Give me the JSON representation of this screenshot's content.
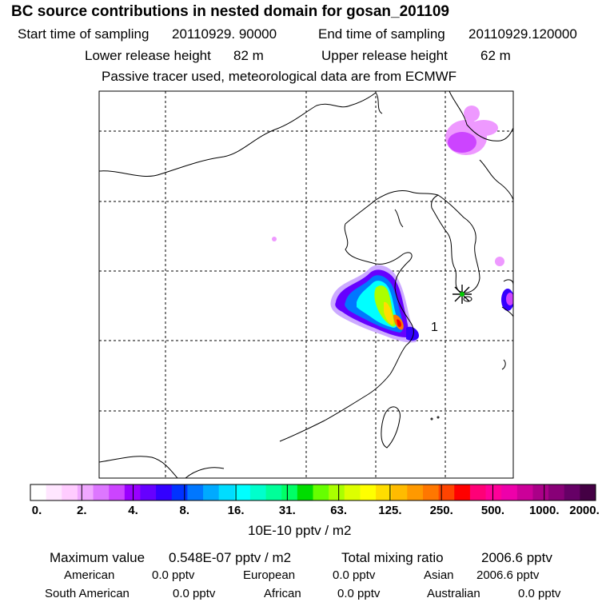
{
  "header": {
    "title": "BC  source contributions in nested domain for gosan_201109",
    "start_label": "Start time of sampling",
    "start_value": "20110929. 90000",
    "end_label": "End time of sampling",
    "end_value": "20110929.120000",
    "lower_label": "Lower release height",
    "lower_value": "82 m",
    "upper_label": "Upper release height",
    "upper_value": "62 m",
    "tracer_note": "Passive tracer used, meteorological data are from ECMWF"
  },
  "map": {
    "station_marker": "asterisk-star-icon",
    "marker_label": "1",
    "plume_colors": [
      "#ff00aa",
      "#ff2020",
      "#ffcc00",
      "#a0ff00",
      "#00ff80",
      "#00ffff",
      "#0090ff",
      "#2020ff",
      "#9000ff",
      "#dd44ff",
      "#ee99ff"
    ]
  },
  "colorbar": {
    "colors": [
      "#ffffff",
      "#ffe6ff",
      "#ffccff",
      "#f0a8ff",
      "#dd77ff",
      "#cc44ff",
      "#9900ff",
      "#6600ff",
      "#3300ff",
      "#0033ff",
      "#0077ff",
      "#00aaff",
      "#00ddff",
      "#00ffff",
      "#00ffcc",
      "#00ff99",
      "#00ff66",
      "#00dd00",
      "#66ff00",
      "#aaff00",
      "#ddff00",
      "#ffff00",
      "#ffdd00",
      "#ffbb00",
      "#ff9900",
      "#ff7700",
      "#ff4400",
      "#ff0000",
      "#ff0077",
      "#ff0099",
      "#ee00aa",
      "#cc0099",
      "#aa0088",
      "#880077",
      "#660066",
      "#440044"
    ],
    "tick_labels": [
      "0.",
      "2.",
      "4.",
      "8.",
      "16.",
      "31.",
      "63.",
      "125.",
      "250.",
      "500.",
      "1000.",
      "2000."
    ],
    "unit": "10E-10 pptv / m2"
  },
  "stats": {
    "max_label": "Maximum value",
    "max_value": "0.548E-07 pptv / m2",
    "total_label": "Total mixing ratio",
    "total_value": "2006.6 pptv",
    "regions": [
      {
        "name": "American",
        "value": "0.0 pptv"
      },
      {
        "name": "European",
        "value": "0.0 pptv"
      },
      {
        "name": "Asian",
        "value": "2006.6 pptv"
      },
      {
        "name": "South American",
        "value": "0.0 pptv"
      },
      {
        "name": "African",
        "value": "0.0 pptv"
      },
      {
        "name": "Australian",
        "value": "0.0 pptv"
      }
    ]
  }
}
